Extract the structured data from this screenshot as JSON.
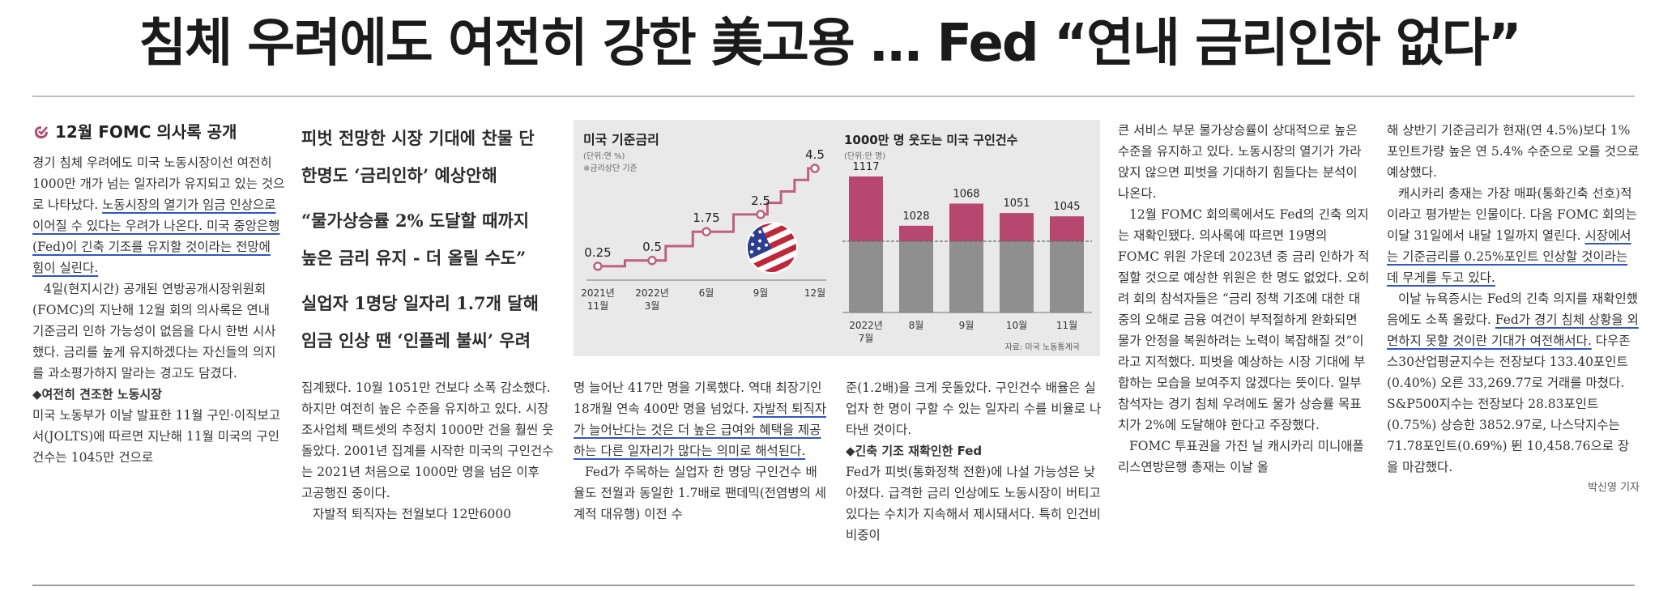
{
  "headline": "침체 우려에도 여전히 강한 美고용 … Fed “연내 금리인하 없다”",
  "section": {
    "title": "12월 FOMC 의사록 공개"
  },
  "col1": {
    "p1a": "경기 침체 우려에도 미국 노동시장이선 여전히 1000만 개가 넘는 일자리가 유지되고 있는 것으로 나타났다. ",
    "p1b": "노동시장의 열기가 임금 인상으로 이어질 수 있다는 우려가 나온다. 미국 중앙은행(Fed)이 긴축 기조를 유지할 것이라는 전망에 힘이 실린다.",
    "p2": "4일(현지시간) 공개된 연방공개시장위원회(FOMC)의 지난해 12월 회의 의사록은 연내 기준금리 인하 가능성이 없음을 다시 한번 시사했다. 금리를 높게 유지하겠다는 자신들의 의지를 과소평가하지 말라는 경고도 담겼다.",
    "sub": "◆여전히 견조한 노동시장",
    "p3": "미국 노동부가 이날 발표한 11월 구인·이직보고서(JOLTS)에 따르면 지난해 11월 미국의 구인건수는 1045만 건으로"
  },
  "deck": {
    "d1": "피벗 전망한 시장 기대에 찬물 단 한명도 ‘금리인하’ 예상안해",
    "d2": "“물가상승률 2% 도달할 때까지 높은 금리 유지 - 더 올릴 수도”",
    "d3": "실업자 1명당 일자리 1.7개 달해 임금 인상 땐 ‘인플레 불씨’ 우려"
  },
  "col2": "집계됐다. 10월 1051만 건보다 소폭 감소했다. 하지만 여전히 높은 수준을 유지하고 있다. 시장조사업체 팩트셋의 추정치 1000만 건을 훨씬 웃돌았다. 2001년 집계를 시작한 미국의 구인건수는 2021년 처음으로 1000만 명을 넘은 이후 고공행진 중이다.",
  "col2b": "자발적 퇴직자는 전월보다 12만6000",
  "col3": {
    "a": "명 늘어난 417만 명을 기록했다. 역대 최장기인 18개월 연속 400만 명을 넘었다. ",
    "b": "자발적 퇴직자가 늘어난다는 것은 더 높은 급여와 혜택을 제공하는 다른 일자리가 많다는 의미로 해석된다.",
    "c": "Fed가 주목하는 실업자 한 명당 구인건수 배율도 전월과 동일한 1.7배로 팬데믹(전염병의 세계적 대유행) 이전 수"
  },
  "col4": {
    "a": "준(1.2배)을 크게 웃돌았다. 구인건수 배율은 실업자 한 명이 구할 수 있는 일자리 수를 비율로 나타낸 것이다.",
    "sub": "◆긴축 기조 재확인한 Fed",
    "b": "Fed가 피벗(통화정책 전환)에 나설 가능성은 낮아졌다. 급격한 금리 인상에도 노동시장이 버티고 있다는 수치가 지속해서 제시돼서다. 특히 인건비 비중이"
  },
  "col5": {
    "a": "큰 서비스 부문 물가상승률이 상대적으로 높은 수준을 유지하고 있다. 노동시장의 열기가 가라앉지 않으면 피벗을 기대하기 힘들다는 분석이 나온다.",
    "b": "12월 FOMC 회의록에서도 Fed의 긴축 의지는 재확인됐다. 의사록에 따르면 19명의 FOMC 위원 가운데 2023년 중 금리 인하가 적절할 것으로 예상한 위원은 한 명도 없었다. 오히려 회의 참석자들은 “금리 정책 기조에 대한 대중의 오해로 금융 여건이 부적절하게 완화되면 물가 안정을 복원하려는 노력이 복잡해질 것”이라고 지적했다. 피벗을 예상하는 시장 기대에 부합하는 모습을 보여주지 않겠다는 뜻이다. 일부 참석자는 경기 침체 우려에도 물가 상승률 목표치가 2%에 도달해야 한다고 주장했다.",
    "c": "FOMC 투표권을 가진 닐 캐시카리 미니애폴리스연방은행 총재는 이날 올"
  },
  "col6": {
    "a": "해 상반기 기준금리가 현재(연 4.5%)보다 1%포인트가량 높은 연 5.4% 수준으로 오를 것으로 예상했다.",
    "b1": "캐시카리 총재는 가장 매파(통화긴축 선호)적이라고 평가받는 인물이다. 다음 FOMC 회의는 이달 31일에서 내달 1일까지 열린다. ",
    "b2": "시장에서는 기준금리를 0.25%포인트 인상할 것이라는 데 무게를 두고 있다.",
    "c1": "이날 뉴욕증시는 Fed의 긴축 의지를 재확인했음에도 소폭 올랐다. ",
    "c2": "Fed가 경기 침체 상황을 외면하지 못할 것이란 기대가 여전해서다.",
    "c3": " 다우존스30산업평균지수는 전장보다 133.40포인트(0.40%) 오른 33,269.77로 거래를 마쳤다. S&P500지수는 전장보다 28.83포인트(0.75%) 상승한 3852.97로, 나스닥지수는 71.78포인트(0.69%) 뛴 10,458.76으로 장을 마감했다.",
    "byline": "박신영 기자"
  },
  "chart_data": [
    {
      "type": "line",
      "title": "미국 기준금리",
      "unit": "(단위:연 %)",
      "note": "※금리상단 기준",
      "categories": [
        "2021년 11월",
        "2022년 3월",
        "6월",
        "9월",
        "12월"
      ],
      "values": [
        0.25,
        0.5,
        1.75,
        2.5,
        4.5
      ],
      "value_labels": [
        "0.25",
        "0.5",
        "1.75",
        "2.5",
        "4.5"
      ],
      "line_color": "#c06080"
    },
    {
      "type": "bar",
      "title": "1000만 명 웃도는 미국 구인건수",
      "unit": "(단위:만 명)",
      "categories": [
        "2022년 7월",
        "8월",
        "9월",
        "10월",
        "11월"
      ],
      "values": [
        1117,
        1028,
        1068,
        1051,
        1045
      ],
      "value_labels": [
        "1117",
        "1028",
        "1068",
        "1051",
        "1045"
      ],
      "reference_line": 1000,
      "source": "자료: 미국 노동통계국",
      "colors": {
        "above": "#b6476e",
        "below": "#8f8f8f"
      }
    }
  ]
}
